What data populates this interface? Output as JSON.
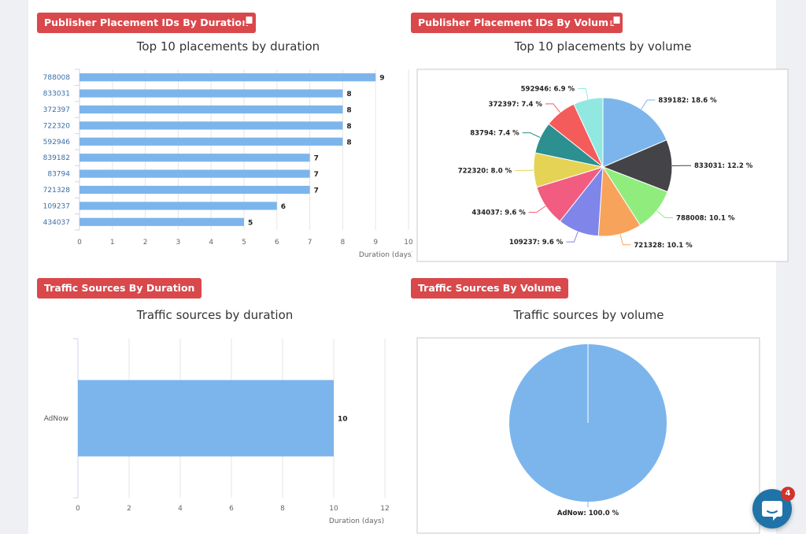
{
  "sections": {
    "placement_duration": {
      "header": "Publisher Placement IDs By Duration"
    },
    "placement_volume": {
      "header": "Publisher Placement IDs By Volume"
    },
    "traffic_duration": {
      "header": "Traffic Sources By Duration"
    },
    "traffic_volume": {
      "header": "Traffic Sources By Volume"
    }
  },
  "chat": {
    "badge_count": "4"
  },
  "chart_data": [
    {
      "type": "bar",
      "orientation": "horizontal",
      "title": "Top 10 placements by duration",
      "xlabel": "Duration (days)",
      "categories": [
        "788008",
        "833031",
        "372397",
        "722320",
        "592946",
        "839182",
        "83794",
        "721328",
        "109237",
        "434037"
      ],
      "values": [
        9,
        8,
        8,
        8,
        8,
        7,
        7,
        7,
        6,
        5
      ],
      "xlim": [
        0,
        10
      ],
      "ticks": [
        "0",
        "1",
        "2",
        "3",
        "4",
        "5",
        "6",
        "7",
        "8",
        "9",
        "10"
      ],
      "color": "#7cb5ec"
    },
    {
      "type": "pie",
      "title": "Top 10 placements by volume",
      "slices": [
        {
          "name": "839182",
          "value": 18.6,
          "label": "839182: 18.6 %",
          "color": "#7cb5ec"
        },
        {
          "name": "833031",
          "value": 12.2,
          "label": "833031: 12.2 %",
          "color": "#434348"
        },
        {
          "name": "788008",
          "value": 10.1,
          "label": "788008: 10.1 %",
          "color": "#90ed7d"
        },
        {
          "name": "721328",
          "value": 10.1,
          "label": "721328: 10.1 %",
          "color": "#f7a35c"
        },
        {
          "name": "109237",
          "value": 9.6,
          "label": "109237: 9.6 %",
          "color": "#8085e9"
        },
        {
          "name": "434037",
          "value": 9.6,
          "label": "434037: 9.6 %",
          "color": "#f15c80"
        },
        {
          "name": "722320",
          "value": 8.0,
          "label": "722320: 8.0 %",
          "color": "#e4d354"
        },
        {
          "name": "83794",
          "value": 7.4,
          "label": "83794: 7.4 %",
          "color": "#2b908f"
        },
        {
          "name": "372397",
          "value": 7.4,
          "label": "372397: 7.4 %",
          "color": "#f45b5b"
        },
        {
          "name": "592946",
          "value": 6.9,
          "label": "592946: 6.9 %",
          "color": "#91e8e1"
        }
      ]
    },
    {
      "type": "bar",
      "orientation": "horizontal",
      "title": "Traffic sources by duration",
      "xlabel": "Duration (days)",
      "categories": [
        "AdNow"
      ],
      "values": [
        10
      ],
      "xlim": [
        0,
        12
      ],
      "ticks": [
        "0",
        "2",
        "4",
        "6",
        "8",
        "10",
        "12"
      ],
      "color": "#7cb5ec"
    },
    {
      "type": "pie",
      "title": "Traffic sources by volume",
      "slices": [
        {
          "name": "AdNow",
          "value": 100.0,
          "label": "AdNow: 100.0 %",
          "color": "#7cb5ec"
        }
      ]
    }
  ]
}
